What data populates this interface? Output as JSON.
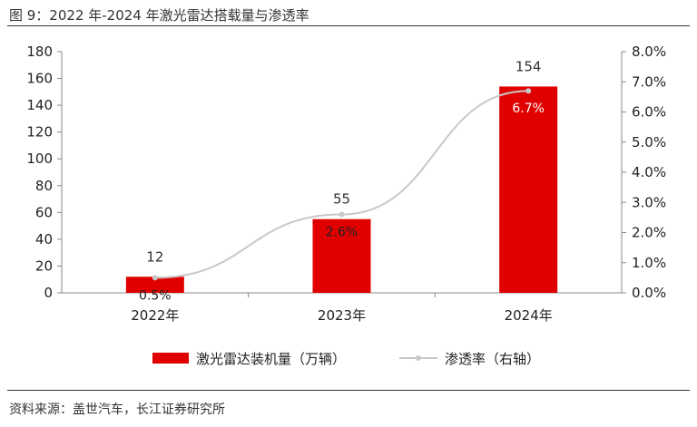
{
  "figure": {
    "title": "图 9：2022 年-2024 年激光雷达搭载量与渗透率",
    "source": "资料来源：盖世汽车，长江证券研究所"
  },
  "colors": {
    "bar": "#e00000",
    "line": "#c8c8c8",
    "marker": "#c8c8c8"
  },
  "chart_data": {
    "type": "bar",
    "categories": [
      "2022年",
      "2023年",
      "2024年"
    ],
    "series": [
      {
        "name": "激光雷达装机量（万辆）",
        "type": "bar",
        "axis": "left",
        "values": [
          12,
          55,
          154
        ],
        "labels": [
          "12",
          "55",
          "154"
        ]
      },
      {
        "name": "渗透率（右轴）",
        "type": "line",
        "axis": "right",
        "values": [
          0.5,
          2.6,
          6.7
        ],
        "labels": [
          "0.5%",
          "2.6%",
          "6.7%"
        ]
      }
    ],
    "y_left": {
      "min": 0,
      "max": 180,
      "step": 20,
      "ticks": [
        "0",
        "20",
        "40",
        "60",
        "80",
        "100",
        "120",
        "140",
        "160",
        "180"
      ]
    },
    "y_right": {
      "min": 0,
      "max": 8,
      "step": 1,
      "ticks": [
        "0.0%",
        "1.0%",
        "2.0%",
        "3.0%",
        "4.0%",
        "5.0%",
        "6.0%",
        "7.0%",
        "8.0%"
      ]
    },
    "grid": false,
    "legend_position": "bottom"
  }
}
